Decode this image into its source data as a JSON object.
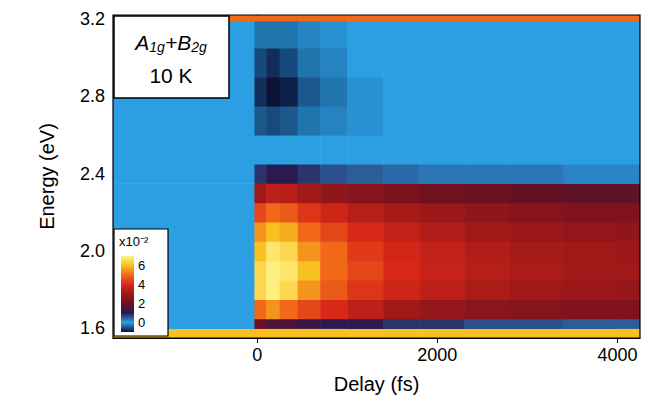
{
  "chart_data": {
    "type": "heatmap",
    "x_label": "Delay (fs)",
    "y_label": "Energy (eV)",
    "annotations": [
      "A1g+B2g",
      "10 K"
    ],
    "x_edges": [
      -1600,
      -30,
      100,
      250,
      450,
      700,
      1000,
      1400,
      1800,
      2300,
      2800,
      3400,
      4000,
      4250
    ],
    "y_edges": [
      1.55,
      1.6,
      1.65,
      1.75,
      1.85,
      1.95,
      2.05,
      2.15,
      2.25,
      2.35,
      2.45,
      2.6,
      2.75,
      2.9,
      3.05,
      3.19,
      3.22
    ],
    "z": [
      [
        6,
        6,
        6,
        6,
        6,
        6,
        6,
        6,
        6,
        6,
        6,
        6,
        6
      ],
      [
        0,
        2,
        1.5,
        1.5,
        1.2,
        1,
        1,
        0.8,
        0.8,
        0.6,
        0.6,
        0.5,
        0.5
      ],
      [
        0,
        5,
        5.5,
        5,
        4.5,
        4,
        3.5,
        3,
        2.8,
        2.6,
        2.5,
        2.4,
        2.4
      ],
      [
        0,
        6.5,
        7,
        6.5,
        5.5,
        4.8,
        4.2,
        3.8,
        3.5,
        3.2,
        3,
        2.9,
        2.8
      ],
      [
        0,
        6.5,
        7,
        6.8,
        6,
        5,
        4.5,
        4,
        3.7,
        3.4,
        3.2,
        3,
        3
      ],
      [
        0,
        6,
        6.8,
        6.5,
        5.5,
        5,
        4.3,
        3.9,
        3.6,
        3.3,
        3.1,
        3,
        2.9
      ],
      [
        0,
        5.5,
        6,
        5.8,
        5,
        4.5,
        4,
        3.6,
        3.3,
        3,
        2.9,
        2.8,
        2.7
      ],
      [
        0,
        4.5,
        5,
        4.8,
        4.2,
        3.8,
        3.4,
        3.1,
        2.9,
        2.7,
        2.5,
        2.4,
        2.4
      ],
      [
        0,
        3,
        3.5,
        3.4,
        3,
        2.7,
        2.5,
        2.3,
        2.1,
        2,
        1.9,
        1.8,
        1.8
      ],
      [
        0,
        0.8,
        1,
        1,
        0.8,
        0.6,
        0.5,
        0.4,
        0.3,
        0.3,
        0.3,
        0.2,
        0.2
      ],
      [
        0,
        0,
        0,
        0,
        0,
        0,
        0,
        0,
        0,
        0,
        0,
        0,
        0
      ],
      [
        0,
        -0.5,
        -0.6,
        -0.5,
        -0.3,
        -0.2,
        -0.1,
        0,
        0,
        0,
        0,
        0,
        0
      ],
      [
        0,
        -0.8,
        -1,
        -0.9,
        -0.5,
        -0.3,
        -0.1,
        0,
        0,
        0,
        0,
        0,
        0
      ],
      [
        0,
        -0.6,
        -0.8,
        -0.6,
        -0.3,
        -0.2,
        0,
        0,
        0,
        0,
        0,
        0,
        0
      ],
      [
        0,
        -0.3,
        -0.3,
        -0.3,
        -0.2,
        -0.1,
        0,
        0,
        0,
        0,
        0,
        0,
        0
      ],
      [
        5,
        5,
        5,
        5,
        5,
        5,
        5,
        5,
        5,
        5,
        5,
        5,
        5
      ]
    ],
    "xlim": [
      -1600,
      4250
    ],
    "xticks": [
      0,
      2000,
      4000
    ],
    "ylim": [
      1.55,
      3.22
    ],
    "yticks": [
      1.6,
      {
        "value": 2,
        "label": "2.0"
      },
      2.4,
      2.8,
      3.2
    ],
    "colorbar": {
      "label": "x10⁻²",
      "clim": [
        -1,
        7
      ],
      "cticks": [
        0,
        2,
        4,
        6
      ]
    },
    "grid": false
  }
}
